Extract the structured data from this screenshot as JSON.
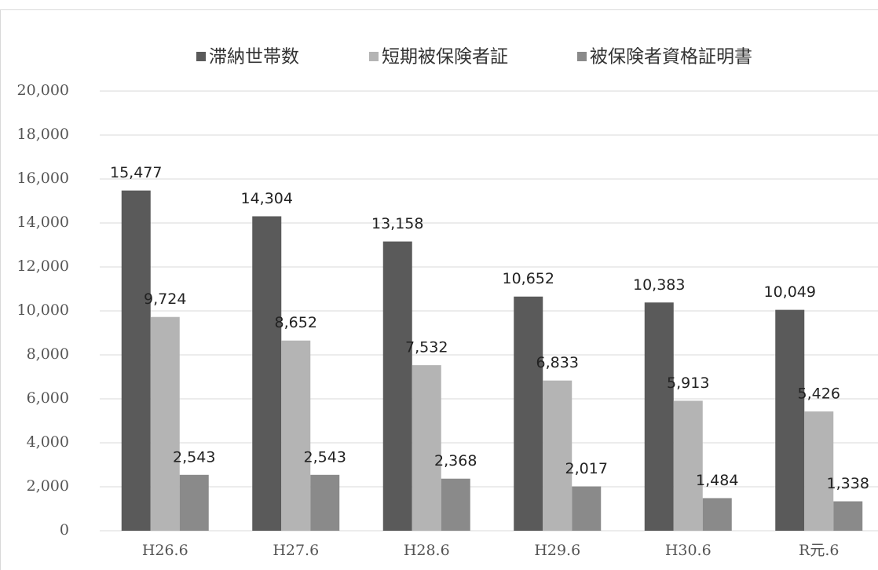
{
  "chart_data": {
    "type": "bar",
    "categories": [
      "H26.6",
      "H27.6",
      "H28.6",
      "H29.6",
      "H30.6",
      "R元.6"
    ],
    "series": [
      {
        "name": "滞納世帯数",
        "color": "#5a5a5a",
        "values": [
          15477,
          14304,
          13158,
          10652,
          10383,
          10049
        ],
        "value_labels": [
          "15,477",
          "14,304",
          "13,158",
          "10,652",
          "10,383",
          "10,049"
        ]
      },
      {
        "name": "短期被保険者証",
        "color": "#b4b4b4",
        "values": [
          9724,
          8652,
          7532,
          6833,
          5913,
          5426
        ],
        "value_labels": [
          "9,724",
          "8,652",
          "7,532",
          "6,833",
          "5,913",
          "5,426"
        ]
      },
      {
        "name": "被保険者資格証明書",
        "color": "#8a8a8a",
        "values": [
          2543,
          2543,
          2368,
          2017,
          1484,
          1338
        ],
        "value_labels": [
          "2,543",
          "2,543",
          "2,368",
          "2,017",
          "1,484",
          "1,338"
        ]
      }
    ],
    "ylim": [
      0,
      20000
    ],
    "yticks": [
      0,
      {
        "value": 2000,
        "label": "2,000"
      },
      {
        "value": 4000,
        "label": "4,000"
      },
      {
        "value": 6000,
        "label": "6,000"
      },
      {
        "value": 8000,
        "label": "8,000"
      },
      {
        "value": 10000,
        "label": "10,000"
      },
      {
        "value": 12000,
        "label": "12,000"
      },
      {
        "value": 14000,
        "label": "14,000"
      },
      {
        "value": 16000,
        "label": "16,000"
      },
      {
        "value": 18000,
        "label": "18,000"
      },
      {
        "value": 20000,
        "label": "20,000"
      }
    ],
    "grid": true,
    "legend": "top"
  }
}
